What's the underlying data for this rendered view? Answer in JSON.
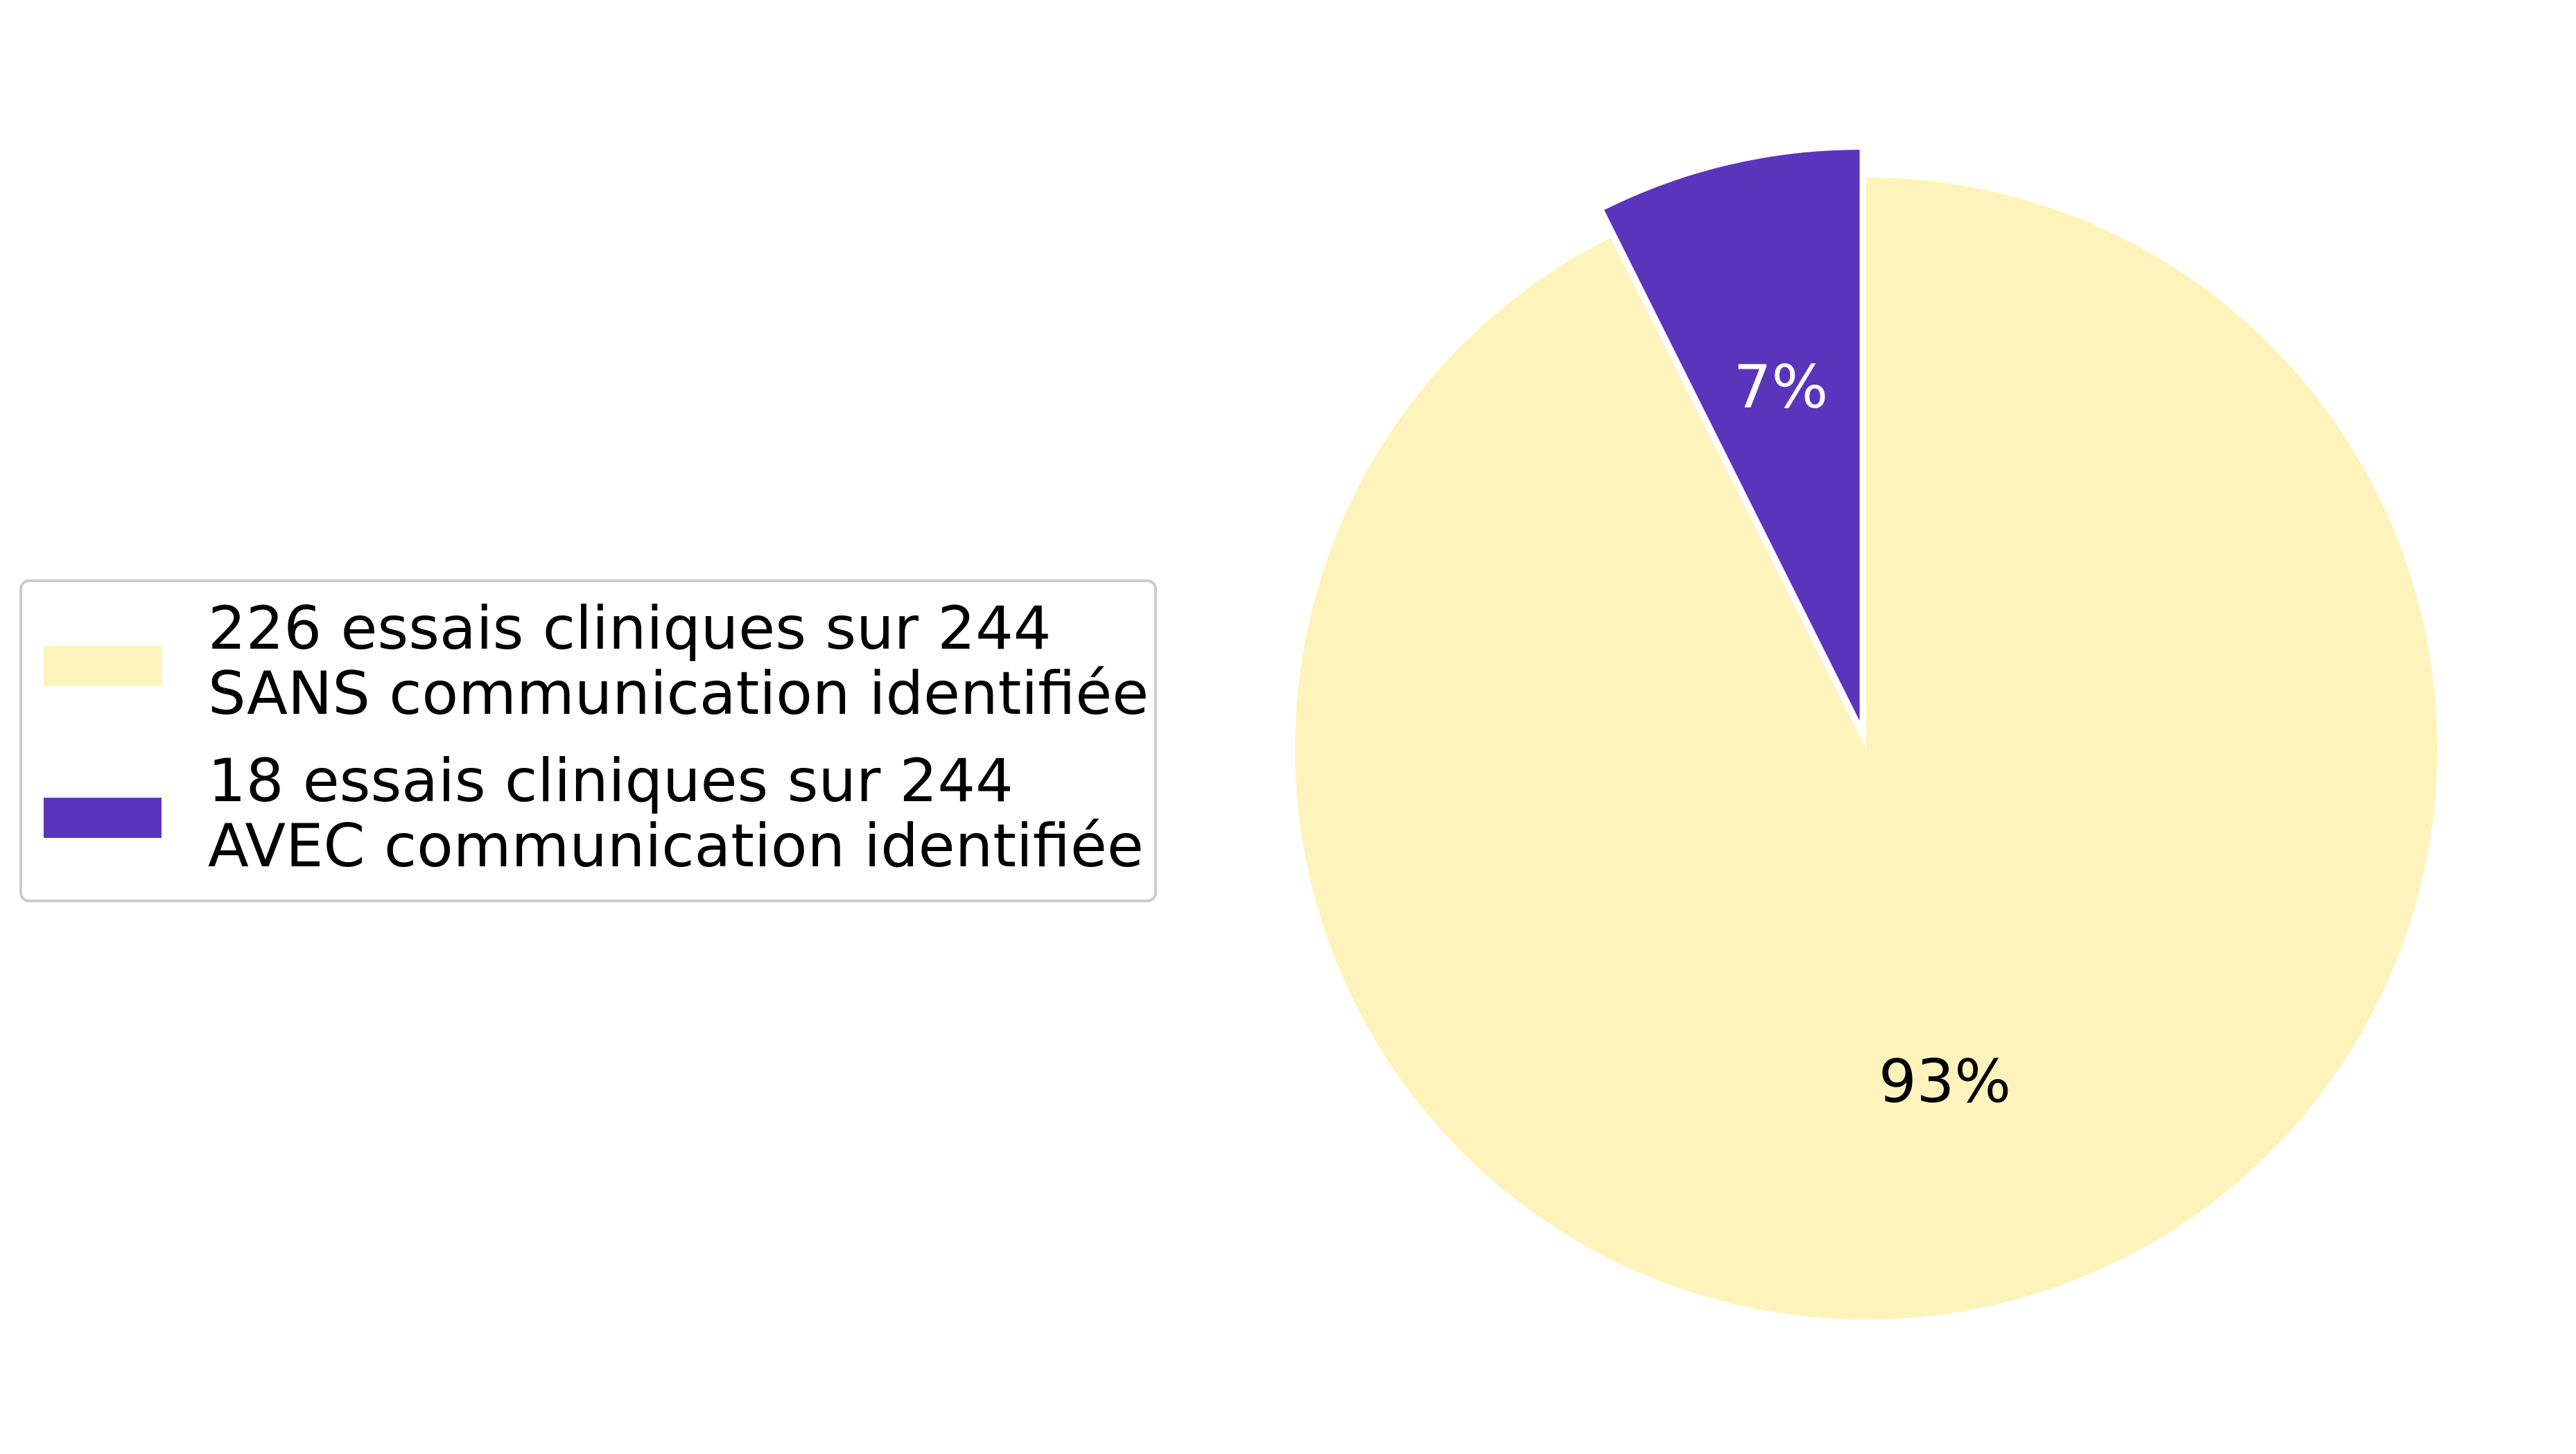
{
  "chart_data": {
    "type": "pie",
    "title": "",
    "slices": [
      {
        "value": 226,
        "total": 244,
        "percent_label": "93%",
        "color": "#fef4bb",
        "label_color": "#000000",
        "exploded": false,
        "legend_lines": [
          "226 essais cliniques sur 244",
          "SANS communication identifiée"
        ]
      },
      {
        "value": 18,
        "total": 244,
        "percent_label": "7%",
        "color": "#5a35bc",
        "label_color": "#ffffff",
        "exploded": true,
        "legend_lines": [
          "18 essais cliniques sur 244",
          "AVEC communication identifiée"
        ]
      }
    ],
    "start_angle": "12 o'clock",
    "direction": "clockwise",
    "legend_position": "left"
  }
}
